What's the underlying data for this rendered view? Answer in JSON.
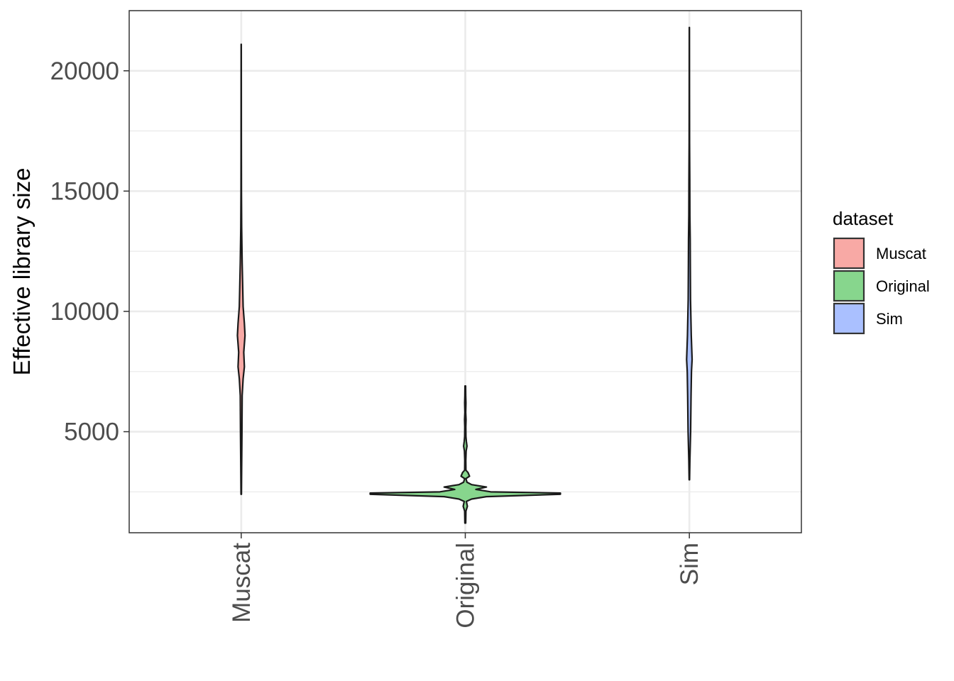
{
  "chart_data": {
    "type": "violin",
    "title": "",
    "xlabel": "",
    "ylabel": "Effective library size",
    "ylim": [
      800,
      22500
    ],
    "y_ticks": [
      5000,
      10000,
      15000,
      20000
    ],
    "y_tick_labels": [
      "5000",
      "10000",
      "15000",
      "20000"
    ],
    "categories": [
      "Muscat",
      "Original",
      "Sim"
    ],
    "grid": true,
    "legend": {
      "title": "dataset",
      "position": "right",
      "entries": [
        "Muscat",
        "Original",
        "Sim"
      ]
    },
    "series": [
      {
        "name": "Muscat",
        "color": "#f8a9a5",
        "min": 2400,
        "max": 21100,
        "density": [
          [
            2400,
            0.1
          ],
          [
            3500,
            0.2
          ],
          [
            5000,
            0.35
          ],
          [
            6500,
            0.45
          ],
          [
            7200,
            0.9
          ],
          [
            7700,
            1.5
          ],
          [
            8300,
            1.2
          ],
          [
            9000,
            1.8
          ],
          [
            9500,
            1.5
          ],
          [
            10200,
            0.9
          ],
          [
            11000,
            0.7
          ],
          [
            12000,
            0.45
          ],
          [
            13500,
            0.2
          ],
          [
            15000,
            0.1
          ],
          [
            17000,
            0.06
          ],
          [
            21100,
            0.03
          ]
        ]
      },
      {
        "name": "Original",
        "color": "#87d68d",
        "min": 1200,
        "max": 6900,
        "density": [
          [
            1200,
            0.2
          ],
          [
            1700,
            0.3
          ],
          [
            1900,
            1.0
          ],
          [
            2100,
            0.5
          ],
          [
            2200,
            3.0
          ],
          [
            2300,
            10.0
          ],
          [
            2400,
            45.0
          ],
          [
            2450,
            45.0
          ],
          [
            2500,
            12.0
          ],
          [
            2600,
            5.0
          ],
          [
            2700,
            10.0
          ],
          [
            2800,
            3.0
          ],
          [
            2900,
            0.8
          ],
          [
            3050,
            0.3
          ],
          [
            3150,
            2.0
          ],
          [
            3300,
            1.3
          ],
          [
            3400,
            0.3
          ],
          [
            3800,
            0.25
          ],
          [
            4200,
            0.4
          ],
          [
            4400,
            0.8
          ],
          [
            4600,
            0.5
          ],
          [
            4800,
            0.3
          ],
          [
            5200,
            0.25
          ],
          [
            5500,
            0.35
          ],
          [
            5800,
            0.2
          ],
          [
            6200,
            0.3
          ],
          [
            6500,
            0.2
          ],
          [
            6900,
            0.15
          ]
        ]
      },
      {
        "name": "Sim",
        "color": "#aac0ff",
        "min": 3000,
        "max": 21800,
        "density": [
          [
            3000,
            0.1
          ],
          [
            3800,
            0.25
          ],
          [
            5000,
            0.6
          ],
          [
            6500,
            0.8
          ],
          [
            7500,
            1.0
          ],
          [
            8000,
            1.3
          ],
          [
            9000,
            0.9
          ],
          [
            10500,
            0.55
          ],
          [
            12000,
            0.45
          ],
          [
            13000,
            0.4
          ],
          [
            14000,
            0.25
          ],
          [
            15500,
            0.2
          ],
          [
            17000,
            0.1
          ],
          [
            19000,
            0.06
          ],
          [
            21800,
            0.03
          ]
        ]
      }
    ]
  }
}
